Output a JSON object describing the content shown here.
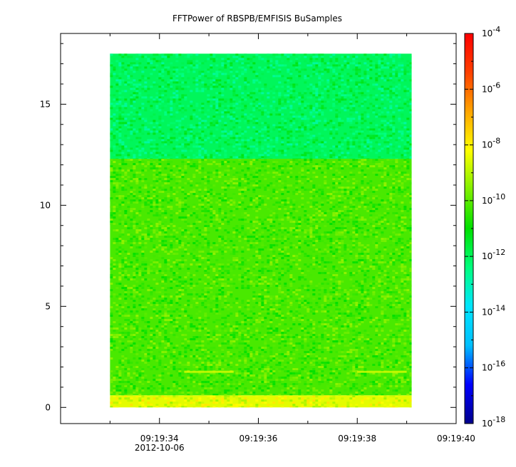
{
  "chart_data": {
    "type": "heatmap",
    "title": "FFTPower of RBSPB/EMFISIS  BuSamples",
    "xlabel": "",
    "ylabel": "",
    "x_axis": {
      "type": "time",
      "date_label": "2012-10-06",
      "ticks": [
        "09:19:34",
        "09:19:36",
        "09:19:38",
        "09:19:40"
      ],
      "minor_ticks": [
        "09:19:33",
        "09:19:35",
        "09:19:37",
        "09:19:39"
      ],
      "range": [
        "09:19:32.0",
        "09:19:40.0"
      ],
      "data_range": [
        "09:19:33.0",
        "09:19:39.1"
      ]
    },
    "y_axis": {
      "range": [
        -0.8,
        18.5
      ],
      "ticks": [
        0,
        5,
        10,
        15
      ],
      "tick_labels": [
        "0",
        "5",
        "10",
        "15"
      ],
      "data_range": [
        0,
        17.5
      ]
    },
    "colorbar": {
      "scale": "log",
      "range": [
        1e-18,
        0.0001
      ],
      "tick_labels": [
        {
          "base": "10",
          "exp": "-4"
        },
        {
          "base": "10",
          "exp": "-6"
        },
        {
          "base": "10",
          "exp": "-8"
        },
        {
          "base": "10",
          "exp": "-10"
        },
        {
          "base": "10",
          "exp": "-12"
        },
        {
          "base": "10",
          "exp": "-14"
        },
        {
          "base": "10",
          "exp": "-16"
        },
        {
          "base": "10",
          "exp": "-18"
        }
      ],
      "tick_values": [
        0.0001,
        1e-06,
        1e-08,
        1e-10,
        1e-12,
        1e-14,
        1e-16,
        1e-18
      ],
      "colormap": [
        "#00008b",
        "#0000ff",
        "#00bfff",
        "#00e5ff",
        "#00ff7f",
        "#00e000",
        "#80f000",
        "#ffff00",
        "#ffa500",
        "#ff4000",
        "#ff0000"
      ]
    },
    "bands": [
      {
        "y_range": [
          0,
          0.6
        ],
        "log_power": -8.5,
        "label_color": "#f5e614"
      },
      {
        "y_range": [
          0.6,
          12.3
        ],
        "log_power": -10.2,
        "label_color": "#50e630"
      },
      {
        "y_range": [
          12.3,
          17.5
        ],
        "log_power": -12.0,
        "label_color": "#1ef08c"
      }
    ],
    "grid": false,
    "legend": "colorbar-right"
  }
}
